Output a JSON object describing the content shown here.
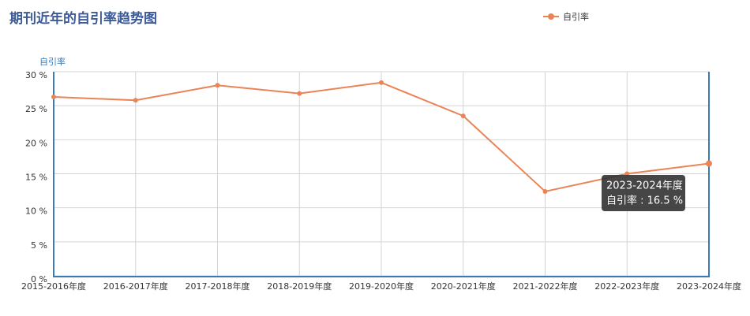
{
  "chart_data": {
    "type": "line",
    "title": "期刊近年的自引率趋势图",
    "y_axis_label": "自引率",
    "categories": [
      "2015-2016年度",
      "2016-2017年度",
      "2017-2018年度",
      "2018-2019年度",
      "2019-2020年度",
      "2020-2021年度",
      "2021-2022年度",
      "2022-2023年度",
      "2023-2024年度"
    ],
    "series": [
      {
        "name": "自引率",
        "color": "#ea8457",
        "values": [
          26.3,
          25.8,
          28.0,
          26.8,
          28.4,
          23.5,
          12.4,
          15.0,
          16.5
        ]
      }
    ],
    "ylim": [
      0,
      30
    ],
    "yticks": [
      {
        "value": 0,
        "label": "0 %"
      },
      {
        "value": 5,
        "label": "5 %"
      },
      {
        "value": 10,
        "label": "10 %"
      },
      {
        "value": 15,
        "label": "15 %"
      },
      {
        "value": 20,
        "label": "20 %"
      },
      {
        "value": 25,
        "label": "25 %"
      },
      {
        "value": 30,
        "label": "30 %"
      }
    ],
    "grid": true,
    "legend": "top-right",
    "tooltip": "自引率 : 16.5 %"
  }
}
